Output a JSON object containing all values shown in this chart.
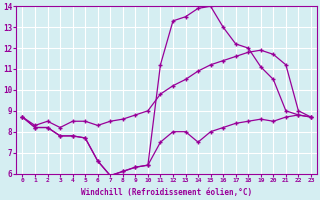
{
  "title": "",
  "xlabel": "Windchill (Refroidissement éolien,°C)",
  "ylabel": "",
  "bg_color": "#d5eef2",
  "line_color": "#990099",
  "grid_color": "#ffffff",
  "xlim": [
    -0.5,
    23.5
  ],
  "ylim": [
    6,
    14
  ],
  "xticks": [
    0,
    1,
    2,
    3,
    4,
    5,
    6,
    7,
    8,
    9,
    10,
    11,
    12,
    13,
    14,
    15,
    16,
    17,
    18,
    19,
    20,
    21,
    22,
    23
  ],
  "yticks": [
    6,
    7,
    8,
    9,
    10,
    11,
    12,
    13,
    14
  ],
  "series": [
    {
      "x": [
        0,
        1,
        2,
        3,
        4,
        5,
        6,
        7,
        8,
        9,
        10,
        11,
        12,
        13,
        14,
        15,
        16,
        17,
        18,
        19,
        20,
        21,
        22,
        23
      ],
      "y": [
        8.7,
        8.2,
        8.2,
        7.8,
        7.8,
        7.7,
        6.6,
        5.9,
        6.1,
        6.3,
        6.4,
        7.5,
        8.0,
        8.0,
        7.5,
        8.0,
        8.2,
        8.4,
        8.5,
        8.6,
        8.5,
        8.7,
        8.8,
        8.7
      ]
    },
    {
      "x": [
        0,
        1,
        2,
        3,
        4,
        5,
        6,
        7,
        8,
        9,
        10,
        11,
        12,
        13,
        14,
        15,
        16,
        17,
        18,
        19,
        20,
        21,
        22,
        23
      ],
      "y": [
        8.7,
        8.2,
        8.2,
        7.8,
        7.8,
        7.7,
        6.6,
        5.9,
        6.1,
        6.3,
        6.4,
        11.2,
        13.3,
        13.5,
        13.9,
        14.0,
        13.0,
        12.2,
        12.0,
        11.1,
        10.5,
        9.0,
        8.8,
        8.7
      ]
    },
    {
      "x": [
        0,
        1,
        2,
        3,
        4,
        5,
        6,
        7,
        8,
        9,
        10,
        11,
        12,
        13,
        14,
        15,
        16,
        17,
        18,
        19,
        20,
        21,
        22,
        23
      ],
      "y": [
        8.7,
        8.3,
        8.5,
        8.2,
        8.5,
        8.5,
        8.3,
        8.5,
        8.6,
        8.8,
        9.0,
        9.8,
        10.2,
        10.5,
        10.9,
        11.2,
        11.4,
        11.6,
        11.8,
        11.9,
        11.7,
        11.2,
        9.0,
        8.7
      ]
    }
  ]
}
